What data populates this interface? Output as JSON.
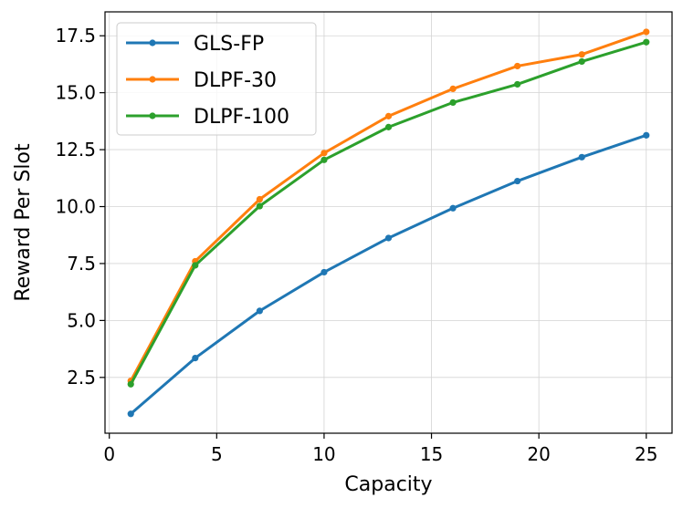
{
  "chart_data": {
    "type": "line",
    "title": "",
    "xlabel": "Capacity",
    "ylabel": "Reward Per Slot",
    "xlim": [
      -0.2,
      26.2
    ],
    "ylim": [
      0.05,
      18.55
    ],
    "xticks": [
      0,
      5,
      10,
      15,
      20,
      25
    ],
    "xtick_labels": [
      "0",
      "5",
      "10",
      "15",
      "20",
      "25"
    ],
    "yticks": [
      2.5,
      5.0,
      7.5,
      10.0,
      12.5,
      15.0,
      17.5
    ],
    "ytick_labels": [
      "2.5",
      "5.0",
      "7.5",
      "10.0",
      "12.5",
      "15.0",
      "17.5"
    ],
    "grid": true,
    "legend_position": "top-left",
    "x": [
      1,
      4,
      7,
      10,
      13,
      16,
      19,
      22,
      25
    ],
    "series": [
      {
        "name": "GLS-FP",
        "color": "#1f77b4",
        "values": [
          0.9,
          3.35,
          5.42,
          7.12,
          8.62,
          9.93,
          11.12,
          12.17,
          13.13
        ]
      },
      {
        "name": "DLPF-30",
        "color": "#ff7f0e",
        "values": [
          2.35,
          7.6,
          10.32,
          12.35,
          13.97,
          15.17,
          16.17,
          16.68,
          17.67
        ]
      },
      {
        "name": "DLPF-100",
        "color": "#2ca02c",
        "values": [
          2.2,
          7.42,
          10.02,
          12.05,
          13.49,
          14.57,
          15.37,
          16.37,
          17.22
        ]
      }
    ]
  }
}
